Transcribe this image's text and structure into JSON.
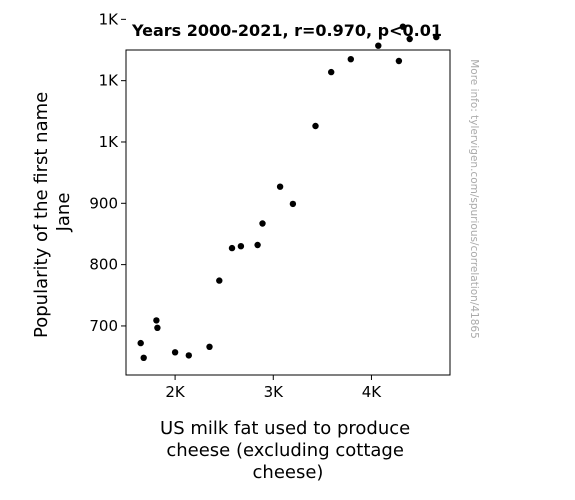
{
  "watermark": "More info: tylervigen.com/spurious/correlation/41865",
  "chart_data": {
    "type": "scatter",
    "title": "Years 2000-2021, r=0.970, p<0.01",
    "xlabel_lines": [
      "US milk fat used to produce",
      "cheese (excluding cottage",
      "cheese)"
    ],
    "ylabel_lines": [
      "Popularity of the first name",
      "Jane"
    ],
    "xlim": [
      1500,
      4800
    ],
    "ylim": [
      620,
      1150
    ],
    "x_ticks": [
      {
        "value": 2000,
        "label": "2K"
      },
      {
        "value": 3000,
        "label": "3K"
      },
      {
        "value": 4000,
        "label": "4K"
      }
    ],
    "y_ticks": [
      {
        "value": 700,
        "label": "700"
      },
      {
        "value": 800,
        "label": "800"
      },
      {
        "value": 900,
        "label": "900"
      },
      {
        "value": 1000,
        "label": "1K"
      },
      {
        "value": 1100,
        "label": "1K"
      },
      {
        "value": 1200,
        "label": "1K"
      }
    ],
    "marker_color": "#000000",
    "grid": false,
    "points": [
      {
        "x": 1650,
        "y": 672
      },
      {
        "x": 1680,
        "y": 648
      },
      {
        "x": 1810,
        "y": 709
      },
      {
        "x": 1820,
        "y": 697
      },
      {
        "x": 2000,
        "y": 657
      },
      {
        "x": 2140,
        "y": 652
      },
      {
        "x": 2350,
        "y": 666
      },
      {
        "x": 2450,
        "y": 774
      },
      {
        "x": 2580,
        "y": 827
      },
      {
        "x": 2670,
        "y": 830
      },
      {
        "x": 2840,
        "y": 832
      },
      {
        "x": 2890,
        "y": 867
      },
      {
        "x": 3070,
        "y": 927
      },
      {
        "x": 3200,
        "y": 899
      },
      {
        "x": 3430,
        "y": 1026
      },
      {
        "x": 3590,
        "y": 1114
      },
      {
        "x": 3790,
        "y": 1135
      },
      {
        "x": 4070,
        "y": 1157
      },
      {
        "x": 4280,
        "y": 1132
      },
      {
        "x": 4320,
        "y": 1188
      },
      {
        "x": 4390,
        "y": 1168
      },
      {
        "x": 4660,
        "y": 1171
      }
    ]
  }
}
